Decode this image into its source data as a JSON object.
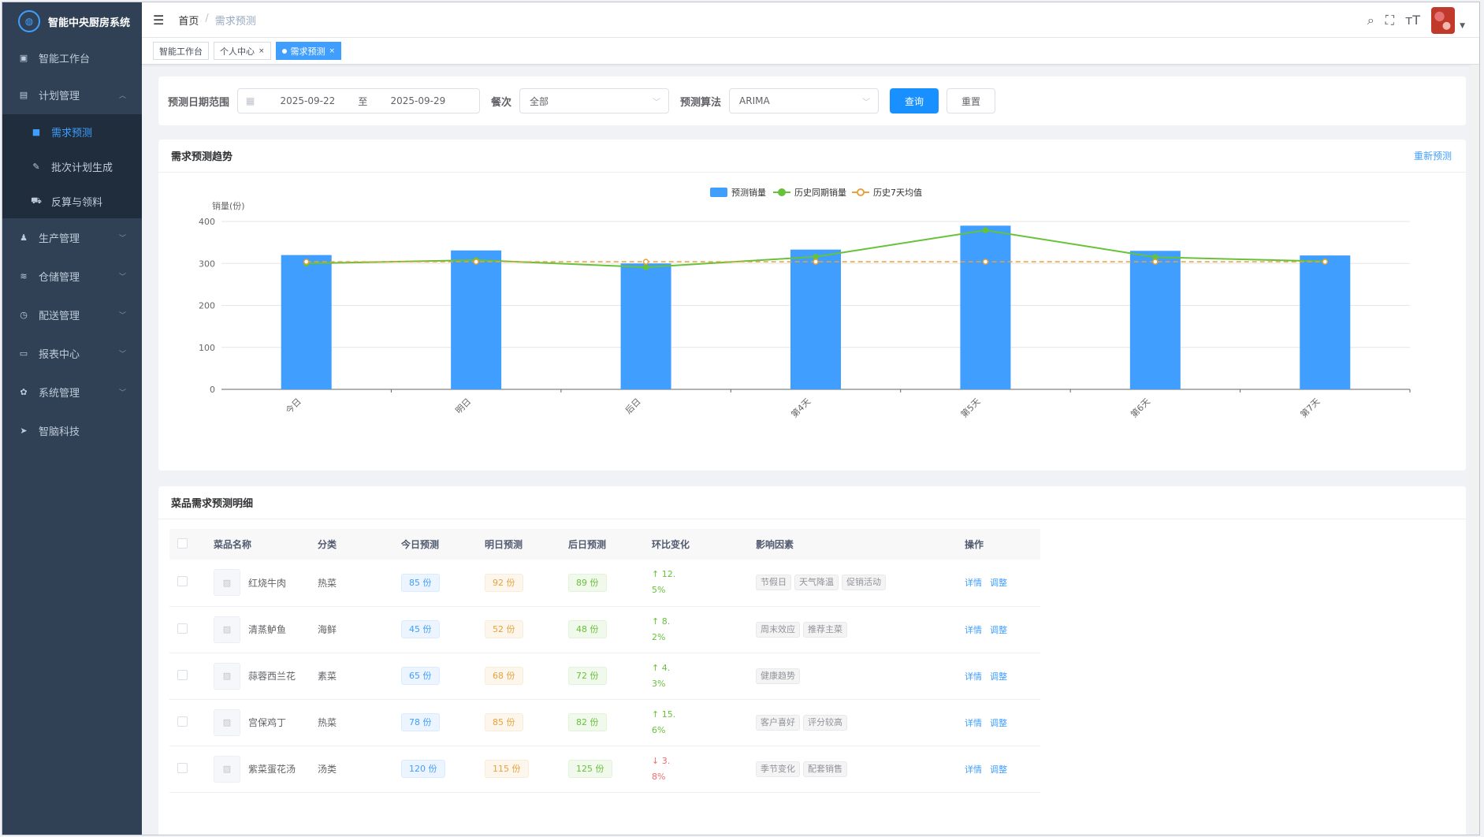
{
  "app": {
    "title": "智能中央厨房系统"
  },
  "sidebar": {
    "items": [
      {
        "label": "智能工作台",
        "icon": "dashboard-icon"
      },
      {
        "label": "计划管理",
        "icon": "plan-icon",
        "expanded": true,
        "children": [
          {
            "label": "需求预测",
            "icon": "forecast-icon",
            "active": true
          },
          {
            "label": "批次计划生成",
            "icon": "edit-icon"
          },
          {
            "label": "反算与领料",
            "icon": "cart-icon"
          }
        ]
      },
      {
        "label": "生产管理",
        "icon": "user-icon"
      },
      {
        "label": "仓储管理",
        "icon": "layers-icon"
      },
      {
        "label": "配送管理",
        "icon": "delivery-icon"
      },
      {
        "label": "报表中心",
        "icon": "monitor-icon"
      },
      {
        "label": "系统管理",
        "icon": "gear-icon"
      },
      {
        "label": "智脑科技",
        "icon": "send-icon"
      }
    ]
  },
  "navbar": {
    "breadcrumb": [
      "首页",
      "需求预测"
    ]
  },
  "tags": [
    {
      "label": "智能工作台",
      "active": false,
      "closable": false
    },
    {
      "label": "个人中心",
      "active": false,
      "closable": true
    },
    {
      "label": "需求预测",
      "active": true,
      "closable": true
    }
  ],
  "filter": {
    "date_label": "预测日期范围",
    "date_start": "2025-09-22",
    "date_sep": "至",
    "date_end": "2025-09-29",
    "meal_label": "餐次",
    "meal_value": "全部",
    "algo_label": "预测算法",
    "algo_value": "ARIMA",
    "query_btn": "查询",
    "reset_btn": "重置"
  },
  "chart_card": {
    "title": "需求预测趋势",
    "action": "重新预测"
  },
  "chart_data": {
    "type": "bar",
    "ylabel": "销量(份)",
    "ylim": [
      0,
      400
    ],
    "yticks": [
      0,
      100,
      200,
      300,
      400
    ],
    "categories": [
      "今日",
      "明日",
      "后日",
      "第4天",
      "第5天",
      "第6天",
      "第7天"
    ],
    "series": [
      {
        "name": "预测销量",
        "type": "bar",
        "color": "#409eff",
        "values": [
          320,
          331,
          300,
          333,
          390,
          330,
          319
        ]
      },
      {
        "name": "历史同期销量",
        "type": "line",
        "color": "#67c23a",
        "values": [
          300,
          308,
          291,
          316,
          379,
          315,
          305
        ]
      },
      {
        "name": "历史7天均值",
        "type": "line-dashed",
        "color": "#e6a23c",
        "values": [
          304,
          304,
          304,
          304,
          304,
          304,
          304
        ]
      }
    ],
    "legend": "top-center",
    "grid": true
  },
  "table_card": {
    "title": "菜品需求预测明细",
    "columns": [
      "菜品名称",
      "分类",
      "今日预测",
      "明日预测",
      "后日预测",
      "环比变化",
      "影响因素",
      "操作"
    ],
    "rows": [
      {
        "name": "红烧牛肉",
        "category": "热菜",
        "today": "85 份",
        "tomorrow": "92 份",
        "after": "89 份",
        "change_l1": "↑ 12.",
        "change_l2": "5%",
        "dir": "up",
        "factors": [
          "节假日",
          "天气降温",
          "促销活动"
        ]
      },
      {
        "name": "清蒸鲈鱼",
        "category": "海鲜",
        "today": "45 份",
        "tomorrow": "52 份",
        "after": "48 份",
        "change_l1": "↑ 8.",
        "change_l2": "2%",
        "dir": "up",
        "factors": [
          "周末效应",
          "推荐主菜"
        ]
      },
      {
        "name": "蒜蓉西兰花",
        "category": "素菜",
        "today": "65 份",
        "tomorrow": "68 份",
        "after": "72 份",
        "change_l1": "↑ 4.",
        "change_l2": "3%",
        "dir": "up",
        "factors": [
          "健康趋势"
        ]
      },
      {
        "name": "宫保鸡丁",
        "category": "热菜",
        "today": "78 份",
        "tomorrow": "85 份",
        "after": "82 份",
        "change_l1": "↑ 15.",
        "change_l2": "6%",
        "dir": "up",
        "factors": [
          "客户喜好",
          "评分较高"
        ]
      },
      {
        "name": "紫菜蛋花汤",
        "category": "汤类",
        "today": "120 份",
        "tomorrow": "115 份",
        "after": "125 份",
        "change_l1": "↓ 3.",
        "change_l2": "8%",
        "dir": "down",
        "factors": [
          "季节变化",
          "配套销售"
        ]
      }
    ],
    "ops": [
      "详情",
      "调整"
    ]
  }
}
